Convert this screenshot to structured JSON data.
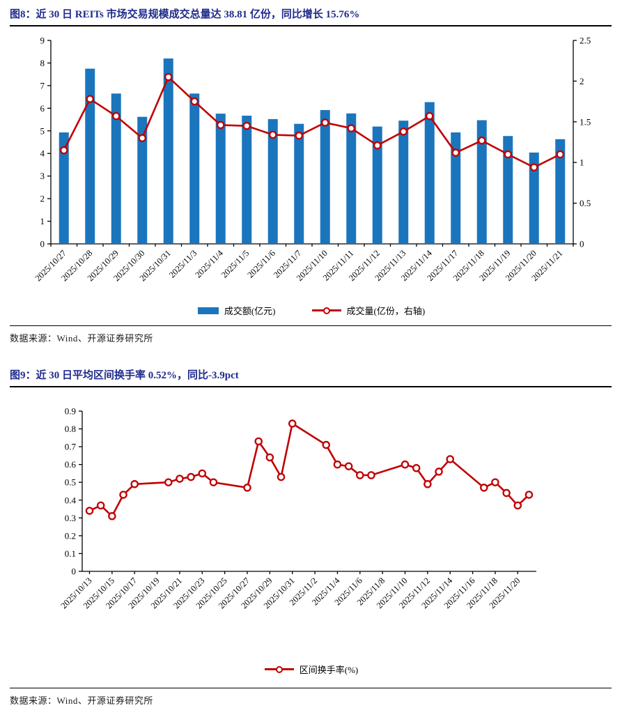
{
  "page": {
    "figure8": {
      "title": "图8：近 30 日 REITs 市场交易规模成交总量达 38.81 亿份，同比增长 15.76%",
      "source": "数据来源：Wind、开源证券研究所"
    },
    "figure9": {
      "title": "图9：近 30 日平均区间换手率 0.52%，同比-3.9pct",
      "source": "数据来源：Wind、开源证券研究所"
    }
  },
  "colors": {
    "title_navy": "#1F2B8C",
    "bar_blue": "#1B75BC",
    "line_red": "#C00000",
    "axis_black": "#000000"
  },
  "chart_data": [
    {
      "id": "figure8",
      "type": "bar",
      "title": "近 30 日 REITs 市场交易规模成交总量达 38.81 亿份，同比增长 15.76%",
      "categories": [
        "2025/10/27",
        "2025/10/28",
        "2025/10/29",
        "2025/10/30",
        "2025/10/31",
        "2025/11/3",
        "2025/11/4",
        "2025/11/5",
        "2025/11/6",
        "2025/11/7",
        "2025/11/10",
        "2025/11/11",
        "2025/11/12",
        "2025/11/13",
        "2025/11/14",
        "2025/11/17",
        "2025/11/18",
        "2025/11/19",
        "2025/11/20",
        "2025/11/21"
      ],
      "series": [
        {
          "name": "成交额(亿元)",
          "type": "bar",
          "axis": "left",
          "color": "#1B75BC",
          "values": [
            4.93,
            7.75,
            6.65,
            5.62,
            8.2,
            6.65,
            5.76,
            5.67,
            5.52,
            5.31,
            5.92,
            5.77,
            5.19,
            5.45,
            6.27,
            4.93,
            5.47,
            4.77,
            4.04,
            4.63
          ]
        },
        {
          "name": "成交量(亿份，右轴)",
          "type": "line",
          "axis": "right",
          "color": "#C00000",
          "values": [
            1.15,
            1.78,
            1.57,
            1.3,
            2.05,
            1.75,
            1.46,
            1.45,
            1.34,
            1.33,
            1.49,
            1.42,
            1.21,
            1.38,
            1.57,
            1.12,
            1.27,
            1.1,
            0.94,
            1.1
          ]
        }
      ],
      "left_axis": {
        "min": 0,
        "max": 9,
        "ticks": [
          0,
          1,
          2,
          3,
          4,
          5,
          6,
          7,
          8,
          9
        ]
      },
      "right_axis": {
        "min": 0,
        "max": 2.5,
        "ticks": [
          0,
          0.5,
          1,
          1.5,
          2,
          2.5
        ]
      },
      "grid": false,
      "legend_position": "bottom"
    },
    {
      "id": "figure9",
      "type": "line",
      "title": "近 30 日平均区间换手率 0.52%，同比-3.9pct",
      "x": [
        "2025/10/13",
        "2025/10/14",
        "2025/10/15",
        "2025/10/16",
        "2025/10/17",
        "2025/10/20",
        "2025/10/21",
        "2025/10/22",
        "2025/10/23",
        "2025/10/24",
        "2025/10/27",
        "2025/10/28",
        "2025/10/29",
        "2025/10/30",
        "2025/10/31",
        "2025/11/3",
        "2025/11/4",
        "2025/11/5",
        "2025/11/6",
        "2025/11/7",
        "2025/11/10",
        "2025/11/11",
        "2025/11/12",
        "2025/11/13",
        "2025/11/14",
        "2025/11/17",
        "2025/11/18",
        "2025/11/19",
        "2025/11/20",
        "2025/11/21"
      ],
      "series": [
        {
          "name": "区间换手率(%)",
          "type": "line",
          "color": "#C00000",
          "values": [
            0.34,
            0.37,
            0.31,
            0.43,
            0.49,
            0.5,
            0.52,
            0.53,
            0.55,
            0.5,
            0.47,
            0.73,
            0.64,
            0.53,
            0.83,
            0.71,
            0.6,
            0.59,
            0.54,
            0.54,
            0.6,
            0.58,
            0.49,
            0.56,
            0.63,
            0.47,
            0.5,
            0.44,
            0.37,
            0.43
          ]
        }
      ],
      "y_axis": {
        "min": 0,
        "max": 0.9,
        "ticks": [
          0,
          0.1,
          0.2,
          0.3,
          0.4,
          0.5,
          0.6,
          0.7,
          0.8,
          0.9
        ]
      },
      "x_tick_labels": [
        "2025/10/13",
        "2025/10/15",
        "2025/10/17",
        "2025/10/19",
        "2025/10/21",
        "2025/10/23",
        "2025/10/25",
        "2025/10/27",
        "2025/10/29",
        "2025/10/31",
        "2025/11/2",
        "2025/11/4",
        "2025/11/6",
        "2025/11/8",
        "2025/11/10",
        "2025/11/12",
        "2025/11/14",
        "2025/11/16",
        "2025/11/18",
        "2025/11/20"
      ],
      "grid": false,
      "legend_position": "bottom"
    }
  ]
}
